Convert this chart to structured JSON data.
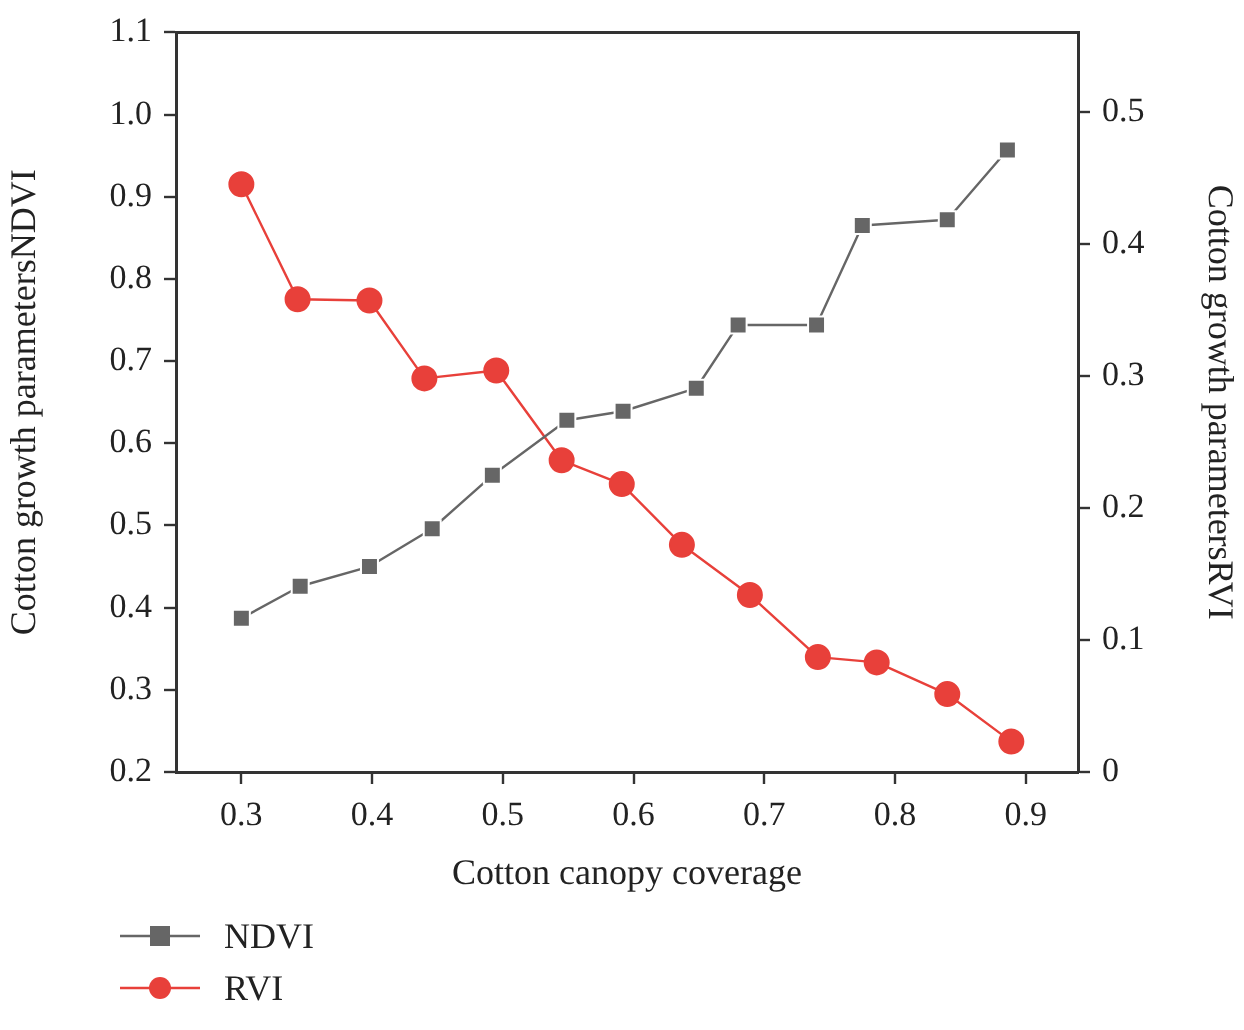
{
  "chart_data": {
    "type": "line",
    "xlabel": "Cotton canopy coverage",
    "ylabel": "Cotton growth parametersNDVI",
    "y2label": "Cotton growth parametersRVI",
    "xlim": [
      0.25,
      0.94
    ],
    "xticks": [
      0.3,
      0.4,
      0.5,
      0.6,
      0.7,
      0.8,
      0.9
    ],
    "ylim": [
      0.2,
      1.1
    ],
    "yticks": [
      0.2,
      0.3,
      0.4,
      0.5,
      0.6,
      0.7,
      0.8,
      0.9,
      {
        "value": 1,
        "label": "1.0"
      },
      1.1
    ],
    "y2lim": [
      0,
      0.56
    ],
    "y2ticks": [
      0,
      0.1,
      0.2,
      0.3,
      0.4,
      0.5
    ],
    "grid": false,
    "legend": "bottom left",
    "series": [
      {
        "name": "NDVI",
        "color": "#666666",
        "marker": "square",
        "x": [
          0.3,
          0.345,
          0.398,
          0.446,
          0.492,
          0.549,
          0.592,
          0.648,
          0.68,
          0.74,
          0.775,
          0.84,
          0.886
        ],
        "values": [
          0.387,
          0.426,
          0.45,
          0.496,
          0.561,
          0.628,
          0.639,
          0.667,
          0.744,
          0.744,
          0.865,
          0.872,
          0.957
        ]
      },
      {
        "name": "RVI",
        "color": "#e8403a",
        "marker": "circle",
        "axis": "y2",
        "x": [
          0.3,
          0.343,
          0.398,
          0.44,
          0.495,
          0.545,
          0.591,
          0.637,
          0.689,
          0.741,
          0.786,
          0.84,
          0.889
        ],
        "values": [
          0.445,
          0.358,
          0.357,
          0.298,
          0.304,
          0.236,
          0.218,
          0.172,
          0.134,
          0.087,
          0.083,
          0.059,
          0.023
        ]
      }
    ]
  }
}
